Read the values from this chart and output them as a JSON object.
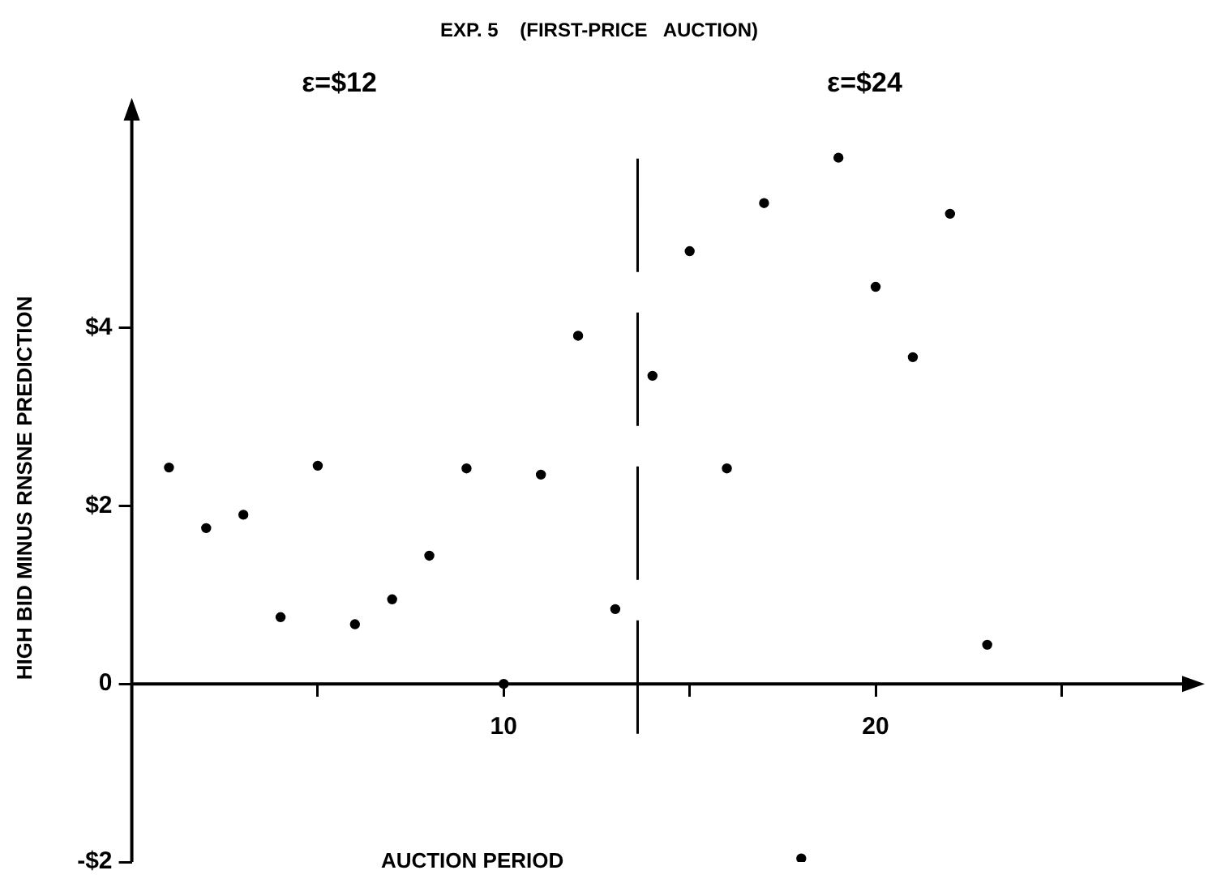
{
  "chart_data": {
    "type": "scatter",
    "title": "EXP. 5    (FIRST-PRICE   AUCTION)",
    "xlabel": "AUCTION PERIOD",
    "ylabel": "HIGH BID MINUS RNSNE PREDICTION",
    "annotations": [
      "ε=$12",
      "ε=$24"
    ],
    "x": [
      1,
      2,
      3,
      4,
      5,
      6,
      7,
      8,
      9,
      10,
      11,
      12,
      13,
      14,
      15,
      16,
      17,
      18,
      19,
      20,
      21,
      22,
      23
    ],
    "series": [
      {
        "color": "#000000",
        "values": [
          2.43,
          1.75,
          1.9,
          0.75,
          2.45,
          0.67,
          0.95,
          1.44,
          2.42,
          0,
          2.35,
          3.91,
          0.84,
          3.46,
          4.86,
          2.42,
          5.4,
          -1.96,
          5.91,
          4.46,
          3.67,
          5.28,
          0.44
        ]
      }
    ],
    "xlim": [
      0,
      28.5
    ],
    "ylim": [
      -2,
      6.4
    ],
    "xticks": [
      {
        "value": 5,
        "label": null
      },
      10,
      {
        "value": 15,
        "label": null
      },
      20,
      {
        "value": 25,
        "label": null
      }
    ],
    "yticks": [
      {
        "value": -2,
        "label": "-$2"
      },
      0,
      {
        "value": 2,
        "label": "$2"
      },
      {
        "value": 4,
        "label": "$4"
      }
    ],
    "ref_lines": [
      {
        "axis": "x",
        "value": 13.6,
        "color": "#000000",
        "line_style": "dashed"
      }
    ],
    "grid": false,
    "legend": false,
    "marker": "circle"
  }
}
